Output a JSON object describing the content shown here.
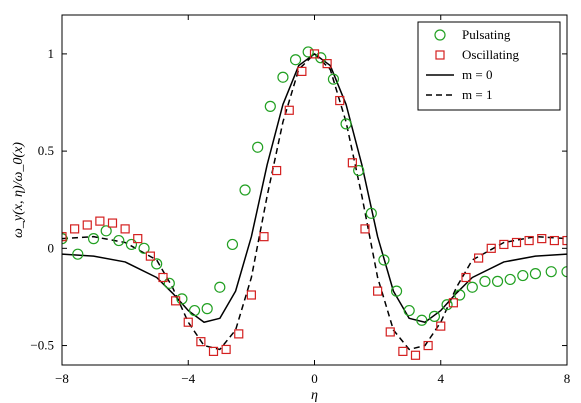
{
  "chart_data": {
    "type": "scatter",
    "xlabel": "η",
    "ylabel": "ω_y(x, η)/ω_0(x)",
    "xlim": [
      -8,
      8
    ],
    "ylim": [
      -0.6,
      1.2
    ],
    "x_ticks": [
      -8,
      -4,
      0,
      4,
      8
    ],
    "y_ticks": [
      -0.5,
      0,
      0.5,
      1
    ],
    "grid": false,
    "legend_position": "top-right",
    "series": [
      {
        "name": "Pulsating",
        "style": "circle-marker",
        "color": "#22a022",
        "x": [
          -8.0,
          -7.5,
          -7.0,
          -6.6,
          -6.2,
          -5.8,
          -5.4,
          -5.0,
          -4.6,
          -4.2,
          -3.8,
          -3.4,
          -3.0,
          -2.6,
          -2.2,
          -1.8,
          -1.4,
          -1.0,
          -0.6,
          -0.2,
          0.2,
          0.6,
          1.0,
          1.4,
          1.8,
          2.2,
          2.6,
          3.0,
          3.4,
          3.8,
          4.2,
          4.6,
          5.0,
          5.4,
          5.8,
          6.2,
          6.6,
          7.0,
          7.5,
          8.0
        ],
        "y": [
          0.05,
          -0.03,
          0.05,
          0.09,
          0.04,
          0.02,
          0.0,
          -0.08,
          -0.18,
          -0.26,
          -0.32,
          -0.31,
          -0.2,
          0.02,
          0.3,
          0.52,
          0.73,
          0.88,
          0.97,
          1.01,
          0.98,
          0.87,
          0.64,
          0.4,
          0.18,
          -0.06,
          -0.22,
          -0.32,
          -0.37,
          -0.35,
          -0.29,
          -0.24,
          -0.2,
          -0.17,
          -0.17,
          -0.16,
          -0.14,
          -0.13,
          -0.12,
          -0.12
        ]
      },
      {
        "name": "Oscillating",
        "style": "square-marker",
        "color": "#d42020",
        "x": [
          -8.0,
          -7.6,
          -7.2,
          -6.8,
          -6.4,
          -6.0,
          -5.6,
          -5.2,
          -4.8,
          -4.4,
          -4.0,
          -3.6,
          -3.2,
          -2.8,
          -2.4,
          -2.0,
          -1.6,
          -1.2,
          -0.8,
          -0.4,
          0.0,
          0.4,
          0.8,
          1.2,
          1.6,
          2.0,
          2.4,
          2.8,
          3.2,
          3.6,
          4.0,
          4.4,
          4.8,
          5.2,
          5.6,
          6.0,
          6.4,
          6.8,
          7.2,
          7.6,
          8.0
        ],
        "y": [
          0.06,
          0.1,
          0.12,
          0.14,
          0.13,
          0.1,
          0.05,
          -0.04,
          -0.15,
          -0.27,
          -0.38,
          -0.48,
          -0.53,
          -0.52,
          -0.44,
          -0.24,
          0.06,
          0.4,
          0.71,
          0.91,
          1.0,
          0.95,
          0.76,
          0.44,
          0.1,
          -0.22,
          -0.43,
          -0.53,
          -0.55,
          -0.5,
          -0.4,
          -0.28,
          -0.15,
          -0.05,
          0.0,
          0.02,
          0.03,
          0.04,
          0.05,
          0.04,
          0.04
        ]
      },
      {
        "name": "m = 0",
        "style": "solid-line",
        "color": "#000000",
        "x": [
          -8,
          -7,
          -6,
          -5,
          -4.5,
          -4,
          -3.5,
          -3,
          -2.5,
          -2,
          -1.5,
          -1,
          -0.5,
          0,
          0.5,
          1,
          1.5,
          2,
          2.5,
          3,
          3.5,
          4,
          4.5,
          5,
          6,
          7,
          8
        ],
        "y": [
          -0.03,
          -0.04,
          -0.07,
          -0.15,
          -0.23,
          -0.32,
          -0.38,
          -0.36,
          -0.22,
          0.06,
          0.43,
          0.74,
          0.94,
          1.0,
          0.94,
          0.74,
          0.43,
          0.06,
          -0.22,
          -0.36,
          -0.38,
          -0.32,
          -0.23,
          -0.15,
          -0.07,
          -0.04,
          -0.03
        ]
      },
      {
        "name": "m = 1",
        "style": "dashed-line",
        "color": "#000000",
        "x": [
          -8,
          -7,
          -6,
          -5,
          -4.5,
          -4,
          -3.5,
          -3,
          -2.5,
          -2,
          -1.5,
          -1,
          -0.5,
          0,
          0.5,
          1,
          1.5,
          2,
          2.5,
          3,
          3.5,
          4,
          4.5,
          5,
          6,
          7,
          8
        ],
        "y": [
          0.05,
          0.06,
          0.03,
          -0.06,
          -0.2,
          -0.38,
          -0.5,
          -0.52,
          -0.42,
          -0.15,
          0.27,
          0.65,
          0.92,
          1.0,
          0.92,
          0.65,
          0.27,
          -0.15,
          -0.42,
          -0.52,
          -0.5,
          -0.38,
          -0.2,
          -0.06,
          0.03,
          0.06,
          0.05
        ]
      }
    ]
  }
}
